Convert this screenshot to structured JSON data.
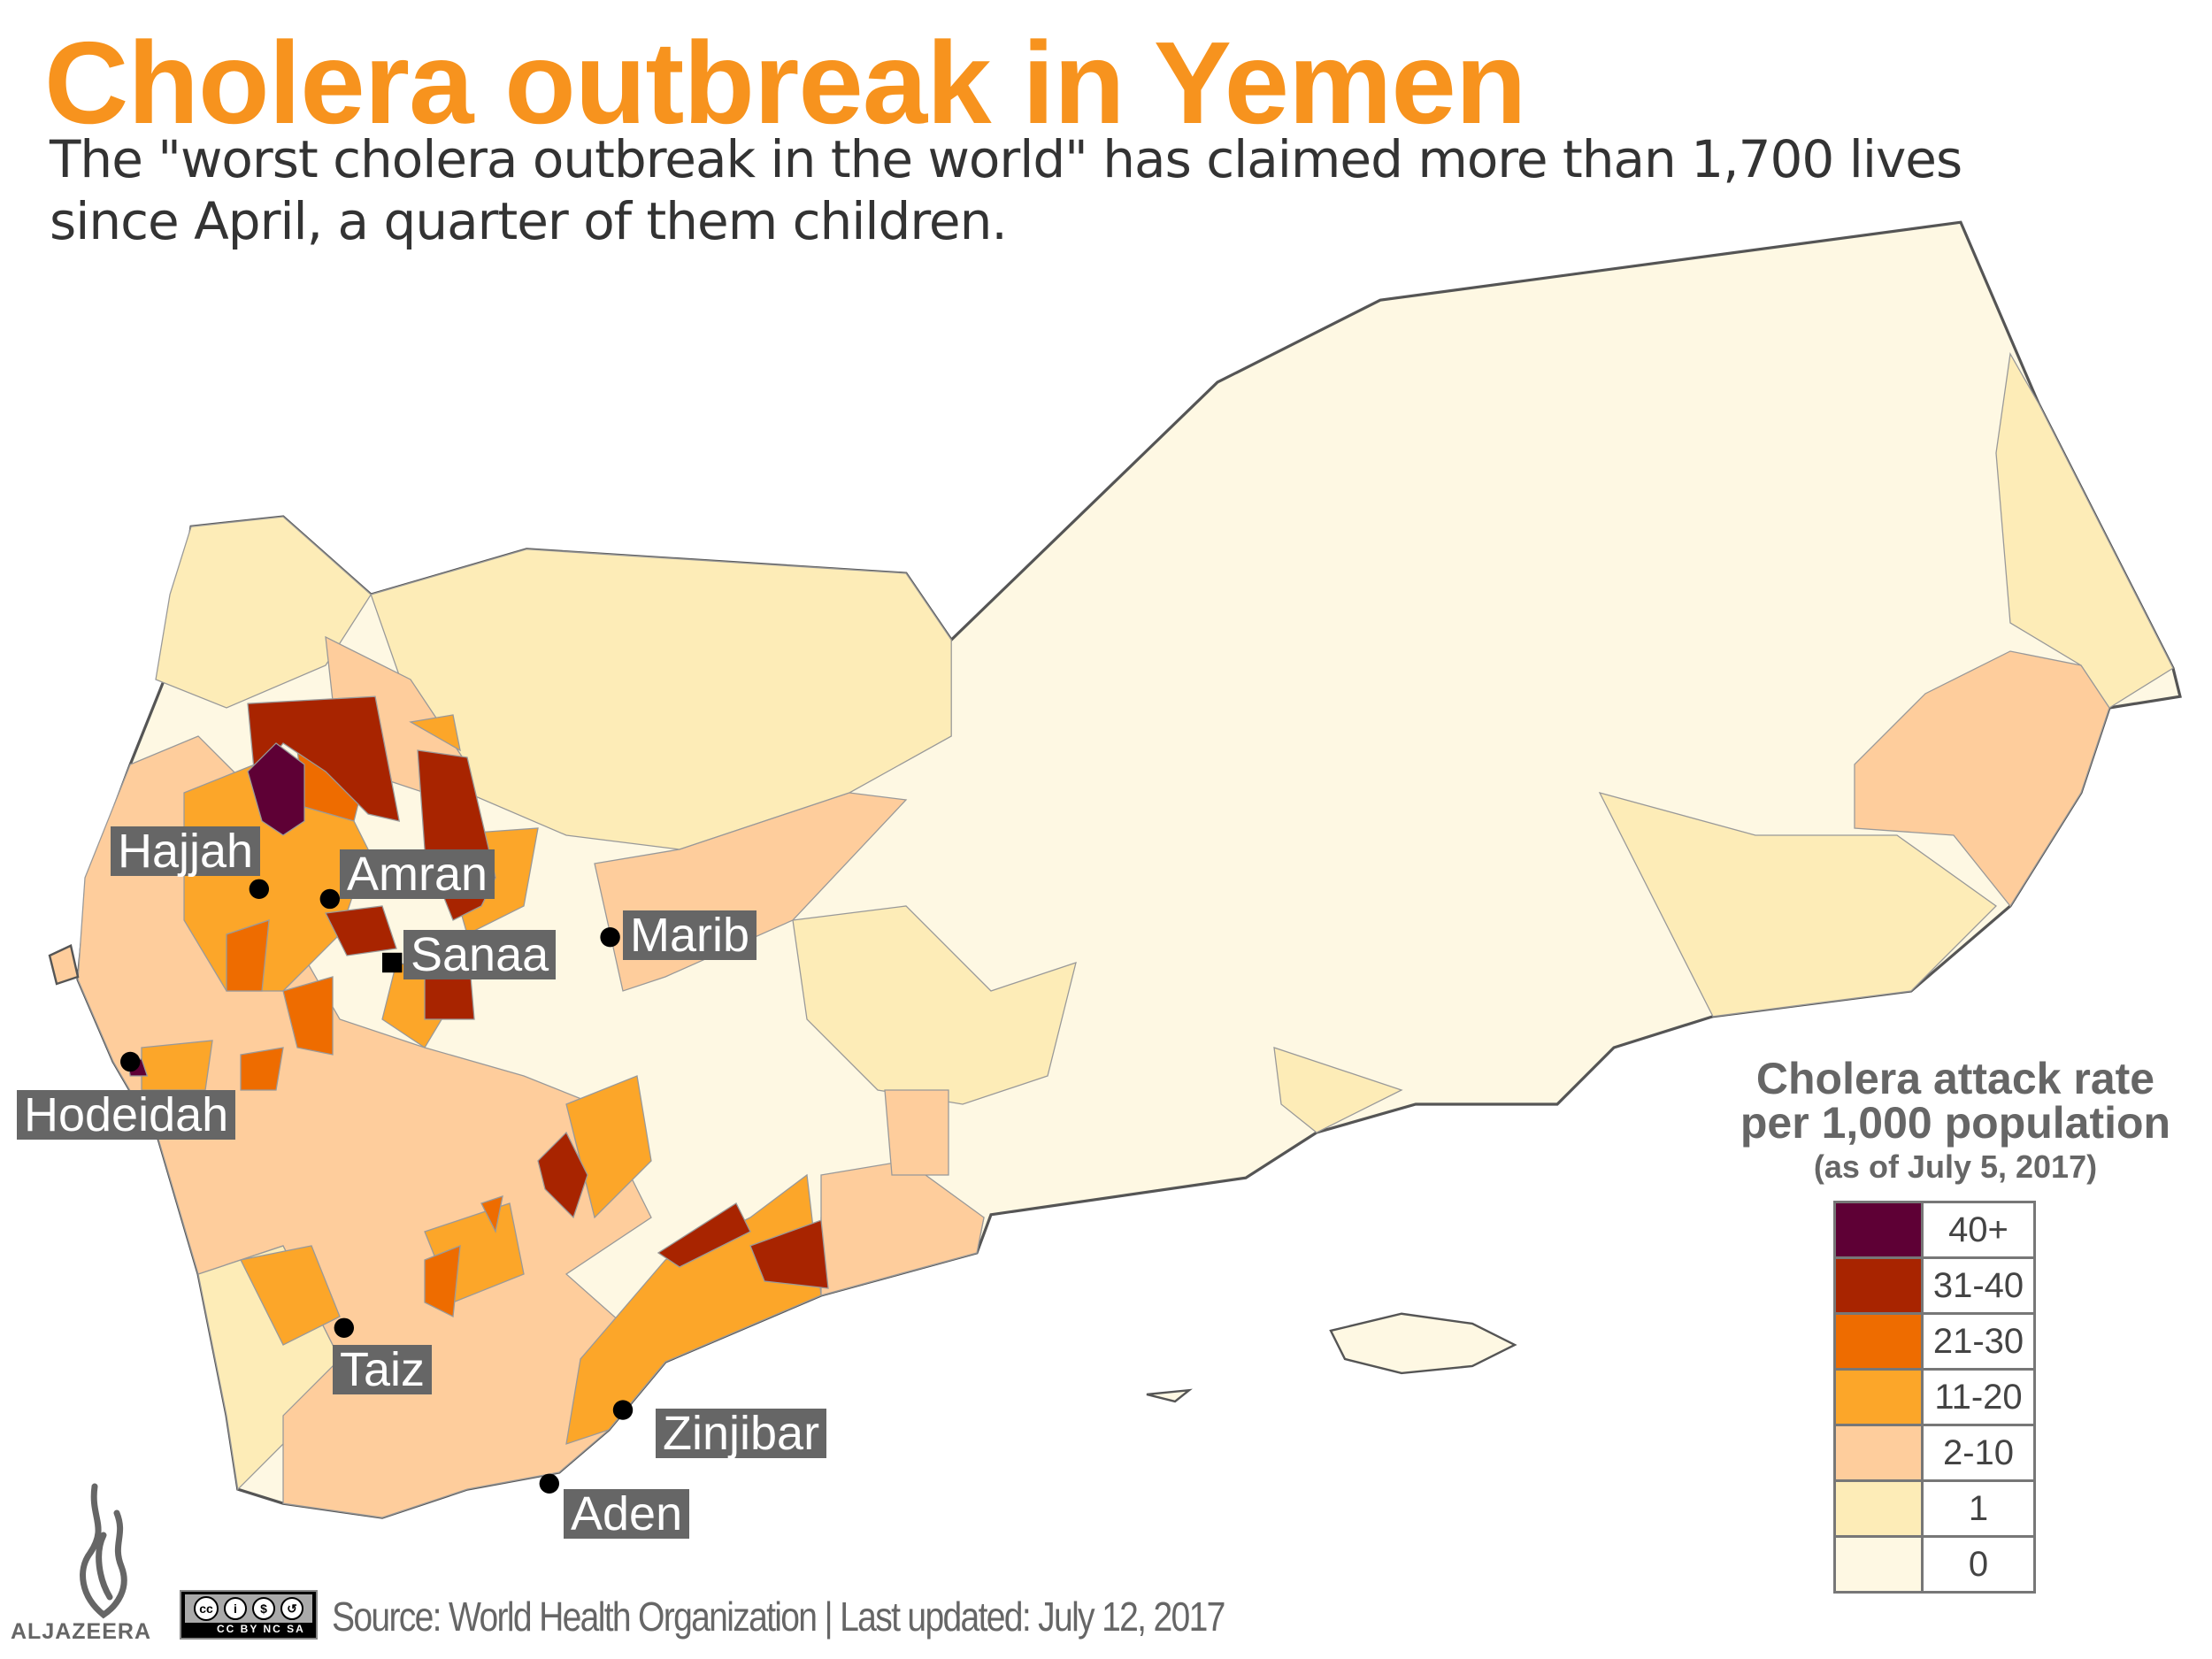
{
  "title": "Cholera outbreak in Yemen",
  "subtitle_lines": [
    "The \"worst cholera outbreak in the world\" has claimed more than 1,700 lives",
    "since April, a quarter of them children."
  ],
  "cities": [
    {
      "name": "Hajjah",
      "marker": "dot"
    },
    {
      "name": "Amran",
      "marker": "dot"
    },
    {
      "name": "Sanaa",
      "marker": "square"
    },
    {
      "name": "Marib",
      "marker": "dot"
    },
    {
      "name": "Hodeidah",
      "marker": "dot"
    },
    {
      "name": "Taiz",
      "marker": "dot"
    },
    {
      "name": "Zinjibar",
      "marker": "dot"
    },
    {
      "name": "Aden",
      "marker": "dot"
    }
  ],
  "legend": {
    "title_line1": "Cholera attack rate",
    "title_line2": "per 1,000 population",
    "subtitle": "(as of July 5, 2017)",
    "items": [
      {
        "label": "40+",
        "color": "#5e0035"
      },
      {
        "label": "31-40",
        "color": "#a82400"
      },
      {
        "label": "21-30",
        "color": "#ee6c00"
      },
      {
        "label": "11-20",
        "color": "#fca629"
      },
      {
        "label": "2-10",
        "color": "#fecd9c"
      },
      {
        "label": "1",
        "color": "#fdecb7"
      },
      {
        "label": "0",
        "color": "#fef8e3"
      }
    ]
  },
  "footer": {
    "logo_text": "ALJAZEERA",
    "license": "CC BY NC SA",
    "source": "Source: World Health Organization | Last updated: July 12, 2017"
  },
  "colors": {
    "title": "#f7931e",
    "label_bg": "#666666",
    "outline": "#555555"
  }
}
